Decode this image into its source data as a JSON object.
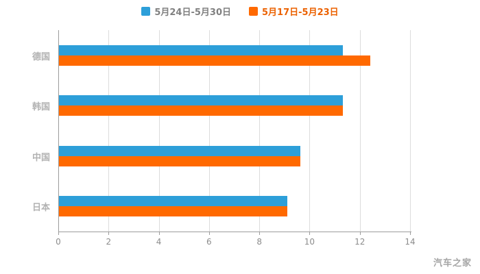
{
  "watermark": "汽车之家",
  "legend": {
    "items": [
      {
        "label": "5月24日-5月30日",
        "color": "#2D9FD9",
        "text_color": "#808080"
      },
      {
        "label": "5月17日-5月23日",
        "color": "#FF6900",
        "text_color": "#EB6100"
      }
    ]
  },
  "chart_data": {
    "type": "bar",
    "orientation": "horizontal",
    "title": "",
    "xlabel": "",
    "ylabel": "",
    "categories": [
      "德国",
      "韩国",
      "中国",
      "日本"
    ],
    "series": [
      {
        "name": "5月24日-5月30日",
        "color": "#2D9FD9",
        "values": [
          11.3,
          11.3,
          9.6,
          9.1
        ]
      },
      {
        "name": "5月17日-5月23日",
        "color": "#FF6900",
        "values": [
          12.4,
          11.3,
          9.6,
          9.1
        ]
      }
    ],
    "xlim": [
      0,
      14
    ],
    "xticks": [
      0,
      2,
      4,
      6,
      8,
      10,
      12,
      14
    ],
    "grid": true,
    "legend_position": "top",
    "axis_color": "#9b9b9b",
    "gridline_color": "#dcdcdc"
  }
}
